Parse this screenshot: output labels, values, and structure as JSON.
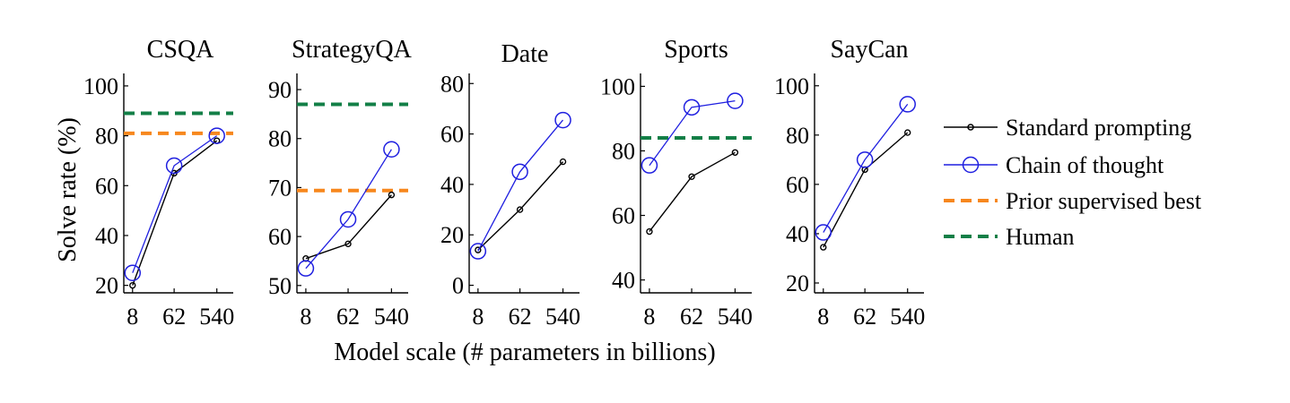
{
  "figure": {
    "ylabel": "Solve rate (%)",
    "xlabel": "Model scale (# parameters in billions)"
  },
  "legend": {
    "position": "right",
    "entries": [
      {
        "key": "standard",
        "label": "Standard prompting"
      },
      {
        "key": "cot",
        "label": "Chain of thought"
      },
      {
        "key": "prior",
        "label": "Prior supervised best"
      },
      {
        "key": "human",
        "label": "Human"
      }
    ]
  },
  "colors": {
    "standard": "#000000",
    "cot": "#1f1fe0",
    "prior": "#f7871d",
    "human": "#137f47"
  },
  "chart_data": [
    {
      "type": "line",
      "title": "CSQA",
      "categories": [
        "8",
        "62",
        "540"
      ],
      "ylim": [
        17,
        105
      ],
      "yticks": [
        20,
        40,
        60,
        80,
        100
      ],
      "series": [
        {
          "name": "Standard prompting",
          "values": [
            20,
            65,
            78
          ]
        },
        {
          "name": "Chain of thought",
          "values": [
            25,
            68,
            80
          ]
        }
      ],
      "reference_lines": [
        {
          "name": "Human",
          "value": 89
        },
        {
          "name": "Prior supervised best",
          "value": 81
        }
      ]
    },
    {
      "type": "line",
      "title": "StrategyQA",
      "categories": [
        "8",
        "62",
        "540"
      ],
      "ylim": [
        48.5,
        93.3
      ],
      "yticks": [
        50,
        60,
        70,
        80,
        90
      ],
      "series": [
        {
          "name": "Standard prompting",
          "values": [
            55.5,
            58.5,
            68.5
          ]
        },
        {
          "name": "Chain of thought",
          "values": [
            53.5,
            63.5,
            77.8
          ]
        }
      ],
      "reference_lines": [
        {
          "name": "Human",
          "value": 87
        },
        {
          "name": "Prior supervised best",
          "value": 69.4
        }
      ]
    },
    {
      "type": "line",
      "title": "Date",
      "categories": [
        "8",
        "62",
        "540"
      ],
      "ylim": [
        -3,
        84
      ],
      "yticks": [
        0,
        20,
        40,
        60,
        80
      ],
      "series": [
        {
          "name": "Standard prompting",
          "values": [
            14,
            30,
            49
          ]
        },
        {
          "name": "Chain of thought",
          "values": [
            13.5,
            45,
            65.5
          ]
        }
      ],
      "reference_lines": []
    },
    {
      "type": "line",
      "title": "Sports",
      "categories": [
        "8",
        "62",
        "540"
      ],
      "ylim": [
        36,
        104
      ],
      "yticks": [
        40,
        60,
        80,
        100
      ],
      "series": [
        {
          "name": "Standard prompting",
          "values": [
            55,
            72,
            79.5
          ]
        },
        {
          "name": "Chain of thought",
          "values": [
            75.5,
            93.5,
            95.5
          ]
        }
      ],
      "reference_lines": [
        {
          "name": "Human",
          "value": 84
        }
      ]
    },
    {
      "type": "line",
      "title": "SayCan",
      "categories": [
        "8",
        "62",
        "540"
      ],
      "ylim": [
        16,
        105
      ],
      "yticks": [
        20,
        40,
        60,
        80,
        100
      ],
      "series": [
        {
          "name": "Standard prompting",
          "values": [
            34.5,
            66,
            81
          ]
        },
        {
          "name": "Chain of thought",
          "values": [
            40.5,
            70,
            92.5
          ]
        }
      ],
      "reference_lines": []
    }
  ]
}
